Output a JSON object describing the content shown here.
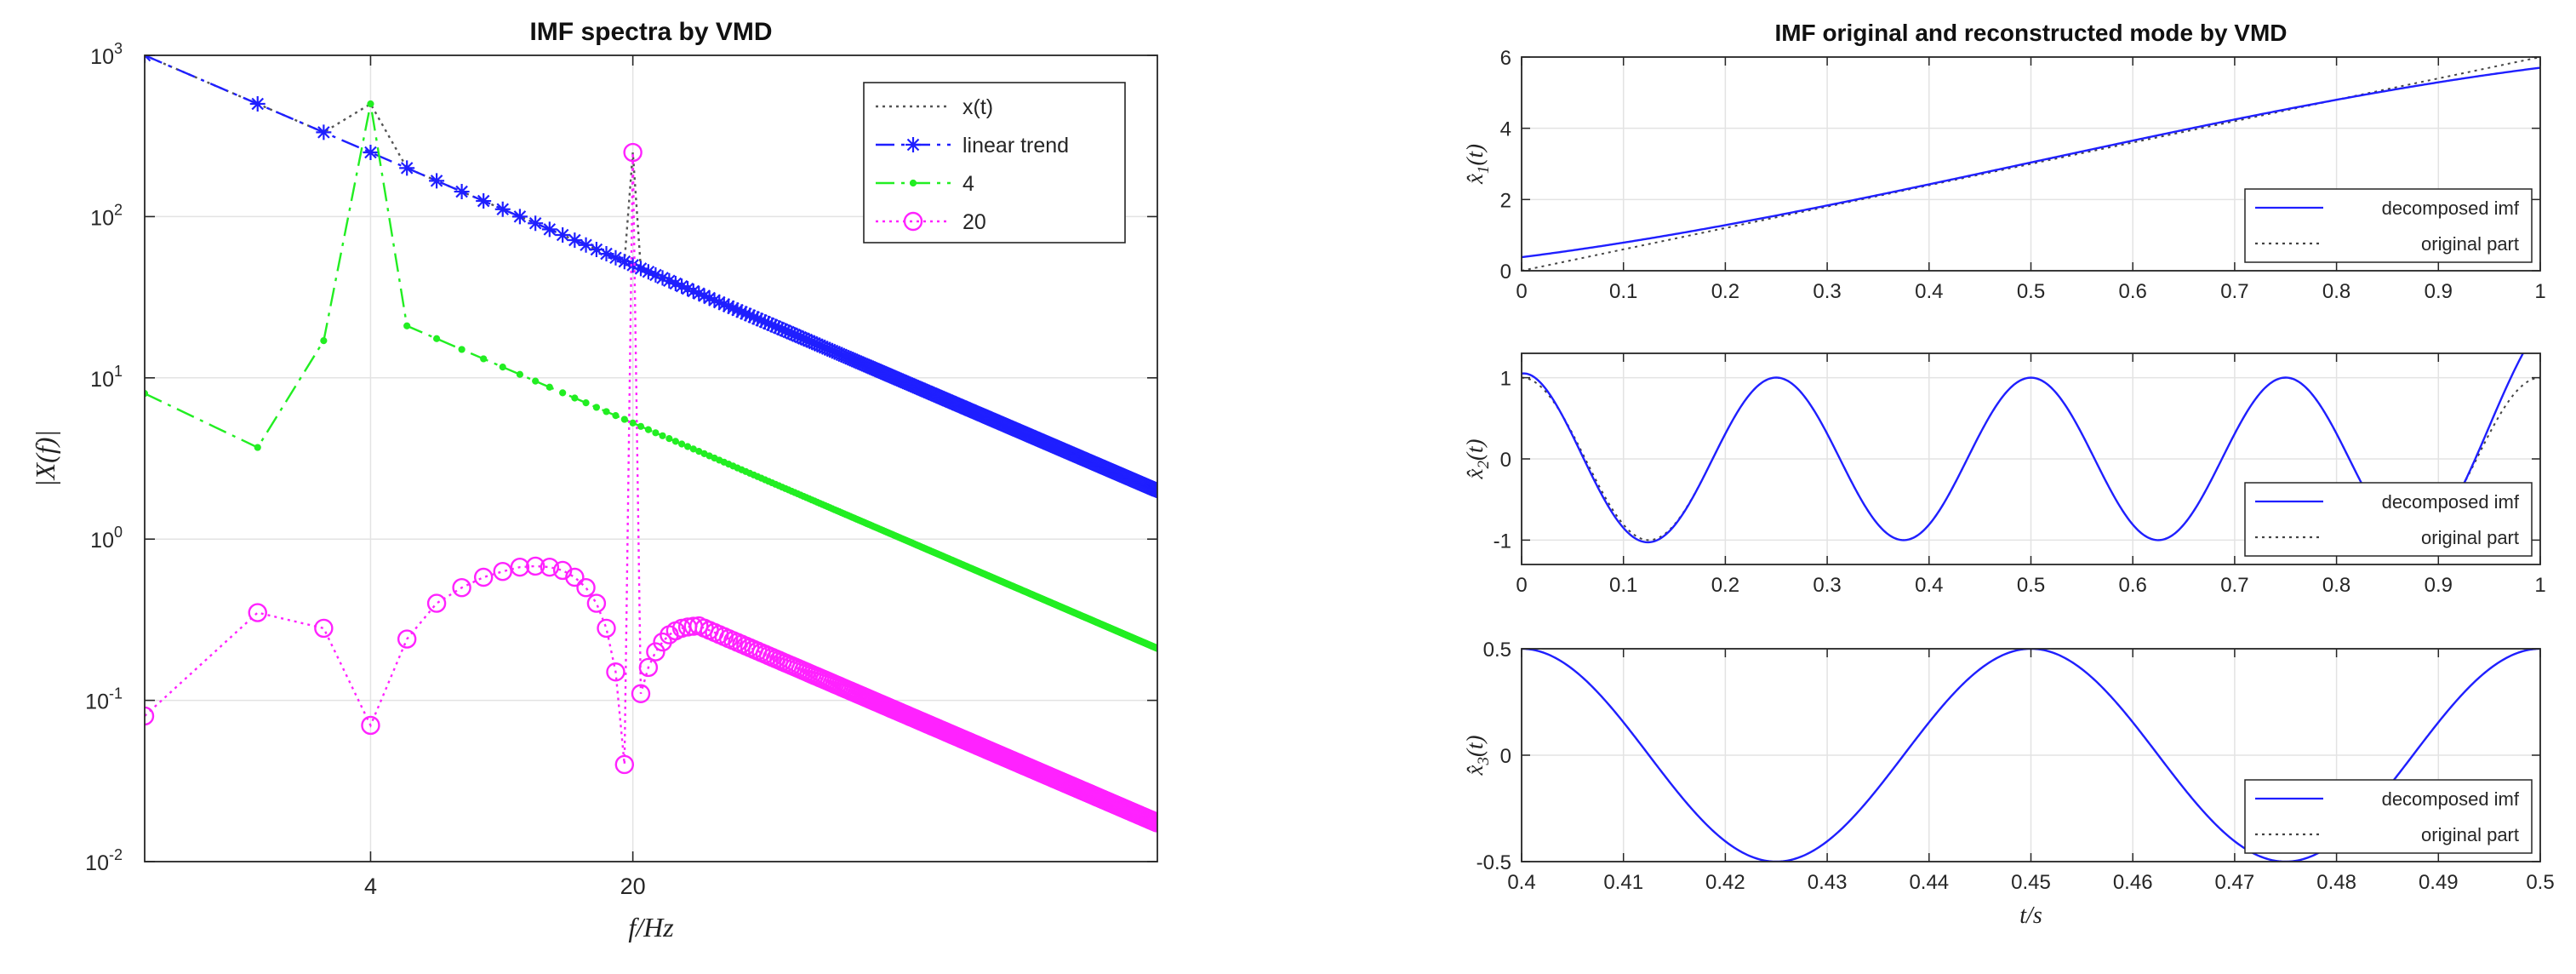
{
  "chart_data": [
    {
      "type": "line",
      "title": "IMF spectra by VMD",
      "xlabel": "f/Hz",
      "ylabel": "|X(f)|",
      "xscale": "log",
      "yscale": "log",
      "xlim": [
        1,
        500
      ],
      "ylim": [
        0.01,
        1000
      ],
      "xticks": [
        4,
        20
      ],
      "xtick_labels": [
        "4",
        "20"
      ],
      "yticks": [
        0.01,
        0.1,
        1,
        10,
        100,
        1000
      ],
      "ytick_labels": [
        {
          "base": "10",
          "exp": "-2"
        },
        {
          "base": "10",
          "exp": "-1"
        },
        {
          "base": "10",
          "exp": "0"
        },
        {
          "base": "10",
          "exp": "1"
        },
        {
          "base": "10",
          "exp": "2"
        },
        {
          "base": "10",
          "exp": "3"
        }
      ],
      "grid": true,
      "legend_position": "top-right",
      "series": [
        {
          "name": "x(t)",
          "color": "#555555",
          "style": "dotted",
          "marker": "none",
          "trend": {
            "a": 1000,
            "p": 1
          },
          "peaks": [
            {
              "f": 4,
              "v": 500
            },
            {
              "f": 20,
              "v": 250
            }
          ]
        },
        {
          "name": "linear trend",
          "color": "#1f1fff",
          "style": "dashdot",
          "marker": "star",
          "trend": {
            "a": 1000,
            "p": 1
          }
        },
        {
          "name": "4",
          "color": "#22ee22",
          "style": "dashdot",
          "marker": "dot",
          "points": [
            [
              1,
              8
            ],
            [
              2,
              3.7
            ],
            [
              3,
              17
            ],
            [
              4,
              500
            ],
            [
              5,
              21
            ]
          ],
          "trend": {
            "a": 105,
            "p": 1
          },
          "start": 5
        },
        {
          "name": "20",
          "color": "#ff22ff",
          "style": "dotted",
          "marker": "circle",
          "points": [
            [
              1,
              0.08
            ],
            [
              2,
              0.35
            ],
            [
              3,
              0.28
            ],
            [
              4,
              0.07
            ],
            [
              5,
              0.24
            ],
            [
              6,
              0.4
            ],
            [
              7,
              0.5
            ],
            [
              8,
              0.58
            ],
            [
              9,
              0.63
            ],
            [
              10,
              0.67
            ],
            [
              11,
              0.68
            ],
            [
              12,
              0.67
            ],
            [
              13,
              0.64
            ],
            [
              14,
              0.58
            ],
            [
              15,
              0.5
            ],
            [
              16,
              0.4
            ],
            [
              17,
              0.28
            ],
            [
              18,
              0.15
            ],
            [
              19,
              0.04
            ],
            [
              20,
              250
            ],
            [
              21,
              0.11
            ],
            [
              22,
              0.16
            ],
            [
              23,
              0.2
            ],
            [
              24,
              0.23
            ],
            [
              25,
              0.255
            ],
            [
              26,
              0.27
            ],
            [
              27,
              0.28
            ],
            [
              28,
              0.285
            ],
            [
              29,
              0.288
            ],
            [
              30,
              0.29
            ]
          ],
          "trend": {
            "a": 8.7,
            "p": 1
          },
          "start": 30
        }
      ]
    },
    {
      "type": "line",
      "title": "IMF original and reconstructed mode by VMD",
      "panels": [
        {
          "ylabel": {
            "base": "x",
            "sub": "1",
            "arg": "(t)"
          },
          "xlim": [
            0,
            1
          ],
          "ylim": [
            0,
            6
          ],
          "xticks": [
            0,
            0.1,
            0.2,
            0.3,
            0.4,
            0.5,
            0.6,
            0.7,
            0.8,
            0.9,
            1
          ],
          "xtick_labels": [
            "0",
            "0.1",
            "0.2",
            "0.3",
            "0.4",
            "0.5",
            "0.6",
            "0.7",
            "0.8",
            "0.9",
            "1"
          ],
          "yticks": [
            0,
            2,
            4,
            6
          ],
          "ytick_labels": [
            "0",
            "2",
            "4",
            "6"
          ],
          "series": [
            {
              "name": "decomposed imf",
              "color": "#1f1fff",
              "style": "solid",
              "kind": "trend_decomposed"
            },
            {
              "name": "original part",
              "color": "#444444",
              "style": "dotted",
              "kind": "trend_original"
            }
          ],
          "legend_position": "bottom-right"
        },
        {
          "ylabel": {
            "base": "x",
            "sub": "2",
            "arg": "(t)"
          },
          "xlim": [
            0,
            1
          ],
          "ylim": [
            -1.3,
            1.3
          ],
          "xticks": [
            0,
            0.1,
            0.2,
            0.3,
            0.4,
            0.5,
            0.6,
            0.7,
            0.8,
            0.9,
            1
          ],
          "xtick_labels": [
            "0",
            "0.1",
            "0.2",
            "0.3",
            "0.4",
            "0.5",
            "0.6",
            "0.7",
            "0.8",
            "0.9",
            "1"
          ],
          "yticks": [
            -1,
            0,
            1
          ],
          "ytick_labels": [
            "-1",
            "0",
            "1"
          ],
          "series": [
            {
              "name": "decomposed imf",
              "color": "#1f1fff",
              "style": "solid",
              "kind": "cos4_decomposed"
            },
            {
              "name": "original part",
              "color": "#444444",
              "style": "dotted",
              "kind": "cos4_original"
            }
          ],
          "legend_position": "bottom-right"
        },
        {
          "ylabel": {
            "base": "x",
            "sub": "3",
            "arg": "(t)"
          },
          "xlabel": "t/s",
          "xlim": [
            0.4,
            0.5
          ],
          "ylim": [
            -0.5,
            0.5
          ],
          "xticks": [
            0.4,
            0.41,
            0.42,
            0.43,
            0.44,
            0.45,
            0.46,
            0.47,
            0.48,
            0.49,
            0.5
          ],
          "xtick_labels": [
            "0.4",
            "0.41",
            "0.42",
            "0.43",
            "0.44",
            "0.45",
            "0.46",
            "0.47",
            "0.48",
            "0.49",
            "0.5"
          ],
          "yticks": [
            -0.5,
            0,
            0.5
          ],
          "ytick_labels": [
            "-0.5",
            "0",
            "0.5"
          ],
          "series": [
            {
              "name": "decomposed imf",
              "color": "#1f1fff",
              "style": "solid",
              "kind": "cos20"
            },
            {
              "name": "original part",
              "color": "#444444",
              "style": "dotted",
              "kind": "cos20"
            }
          ],
          "legend_position": "bottom-right"
        }
      ]
    }
  ]
}
